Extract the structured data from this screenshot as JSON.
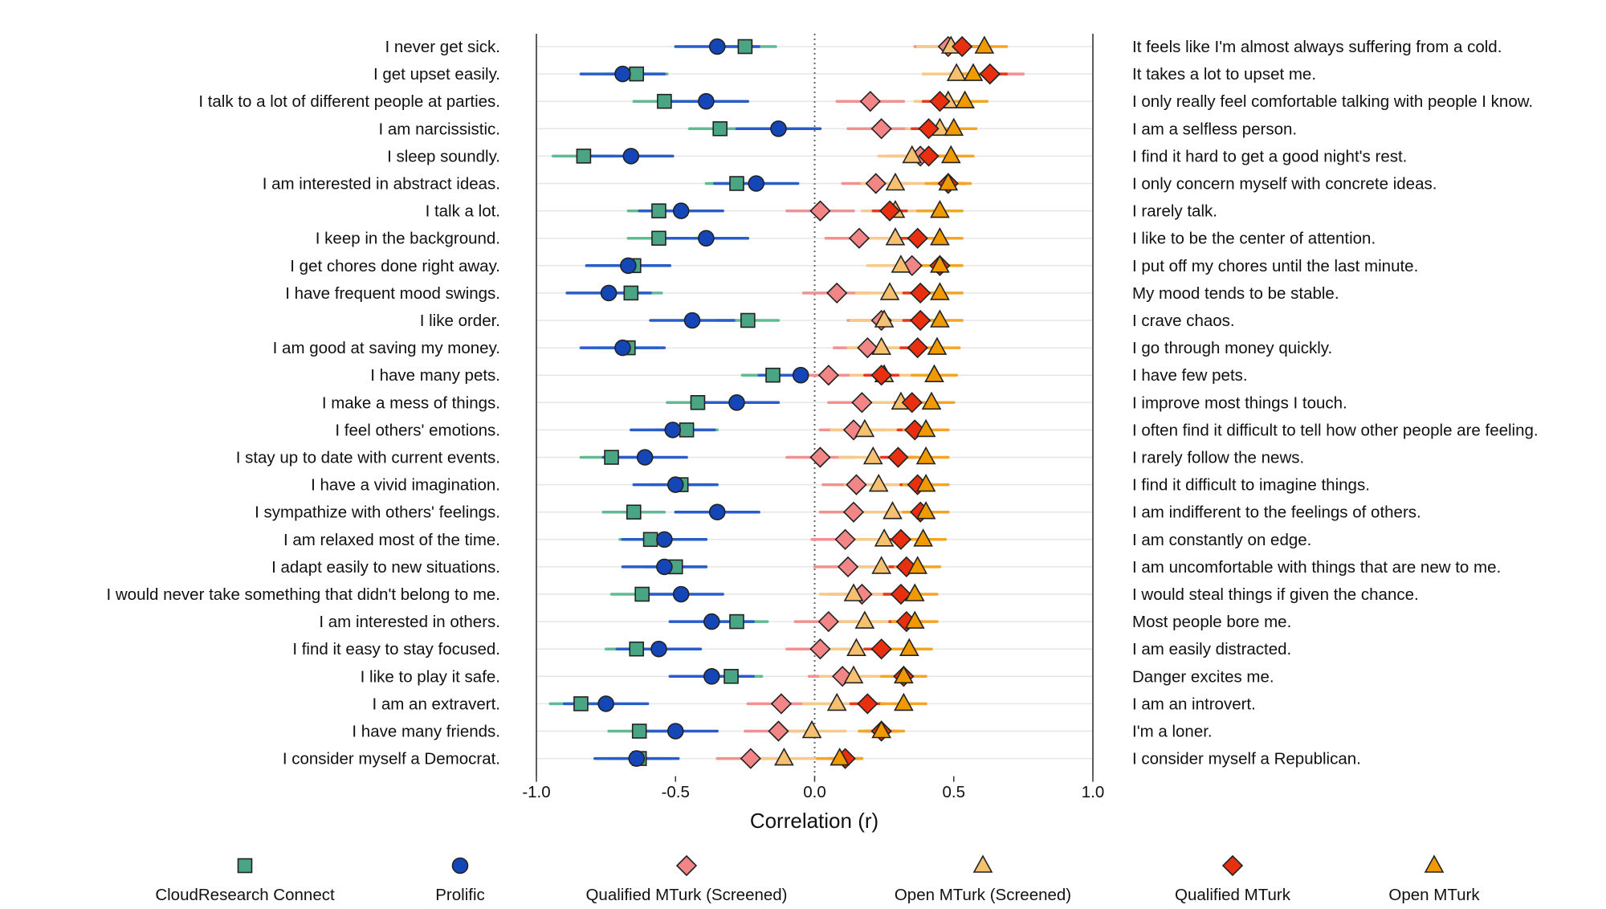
{
  "chart_data": {
    "type": "scatter",
    "subtype": "dot-plot-with-confidence-intervals",
    "xlabel": "Correlation (r)",
    "xlim": [
      -1.0,
      1.0
    ],
    "xticks": [
      "-1.0",
      "-0.5",
      "0.0",
      "0.5",
      "1.0"
    ],
    "xtick_values": [
      -1.0,
      -0.5,
      0.0,
      0.5,
      1.0
    ],
    "reference_line": 0.0,
    "legend_position": "bottom",
    "left_labels": [
      "I never get sick.",
      "I get upset easily.",
      "I talk to a lot of different people at parties.",
      "I am narcissistic.",
      "I sleep soundly.",
      "I am interested in abstract ideas.",
      "I talk a lot.",
      "I keep in the background.",
      "I get chores done right away.",
      "I have frequent mood swings.",
      "I like order.",
      "I am good at saving my money.",
      "I have many pets.",
      "I make a mess of things.",
      "I feel others' emotions.",
      "I stay up to date with current events.",
      "I have a vivid imagination.",
      "I sympathize with others' feelings.",
      "I am relaxed most of the time.",
      "I adapt easily to new situations.",
      "I would never take something that didn't belong to me.",
      "I am interested in others.",
      "I find it easy to stay focused.",
      "I like to play it safe.",
      "I am an extravert.",
      "I have many friends.",
      "I consider myself a Democrat."
    ],
    "right_labels": [
      "It feels like I'm almost always suffering from a cold.",
      "It takes a lot to upset me.",
      "I only really feel comfortable talking with people I know.",
      "I am a selfless person.",
      "I find it hard to get a good night's rest.",
      "I only concern myself with concrete ideas.",
      "I rarely talk.",
      "I like to be the center of attention.",
      "I put off my chores until the last minute.",
      "My mood tends to be stable.",
      "I crave chaos.",
      "I go through money quickly.",
      "I have few pets.",
      "I improve most things I touch.",
      "I often find it difficult to tell how other people are feeling.",
      "I rarely follow the news.",
      "I find it difficult to imagine things.",
      "I am indifferent to the feelings of others.",
      "I am constantly on edge.",
      "I am uncomfortable with things that are new to me.",
      "I would steal things if given the chance.",
      "Most people bore me.",
      "I am easily distracted.",
      "Danger excites me.",
      "I am an introvert.",
      "I'm a loner.",
      "I consider myself a Republican."
    ],
    "series": [
      {
        "name": "CloudResearch Connect",
        "marker": "square",
        "color": "#4aa584",
        "ci_color": "#5fbb92",
        "ci_halfwidth": 0.11,
        "values": [
          -0.25,
          -0.64,
          -0.54,
          -0.34,
          -0.83,
          -0.28,
          -0.56,
          -0.56,
          -0.65,
          -0.66,
          -0.24,
          -0.67,
          -0.15,
          -0.42,
          -0.46,
          -0.73,
          -0.48,
          -0.65,
          -0.59,
          -0.5,
          -0.62,
          -0.28,
          -0.64,
          -0.3,
          -0.84,
          -0.63,
          -0.63
        ]
      },
      {
        "name": "Prolific",
        "marker": "circle",
        "color": "#1446b8",
        "ci_color": "#2a5ccc",
        "ci_halfwidth": 0.15,
        "values": [
          -0.35,
          -0.69,
          -0.39,
          -0.13,
          -0.66,
          -0.21,
          -0.48,
          -0.39,
          -0.67,
          -0.74,
          -0.44,
          -0.69,
          -0.05,
          -0.28,
          -0.51,
          -0.61,
          -0.5,
          -0.35,
          -0.54,
          -0.54,
          -0.48,
          -0.37,
          -0.56,
          -0.37,
          -0.75,
          -0.5,
          -0.64
        ]
      },
      {
        "name": "Qualified MTurk (Screened)",
        "marker": "diamond",
        "color": "#f28585",
        "ci_color": "#f39090",
        "ci_halfwidth": 0.12,
        "values": [
          0.48,
          0.63,
          0.2,
          0.24,
          0.38,
          0.22,
          0.02,
          0.16,
          0.35,
          0.08,
          0.24,
          0.19,
          0.05,
          0.17,
          0.14,
          0.02,
          0.15,
          0.14,
          0.11,
          0.12,
          0.17,
          0.05,
          0.02,
          0.1,
          -0.12,
          -0.13,
          -0.23
        ]
      },
      {
        "name": "Open MTurk (Screened)",
        "marker": "triangle",
        "color": "#f5c070",
        "ci_color": "#f7c98a",
        "ci_halfwidth": 0.12,
        "values": [
          0.49,
          0.51,
          0.48,
          0.45,
          0.35,
          0.29,
          0.29,
          0.29,
          0.31,
          0.27,
          0.25,
          0.24,
          0.25,
          0.31,
          0.18,
          0.21,
          0.23,
          0.28,
          0.25,
          0.24,
          0.14,
          0.18,
          0.15,
          0.14,
          0.08,
          -0.01,
          -0.11
        ]
      },
      {
        "name": "Qualified MTurk",
        "marker": "diamond",
        "color": "#e83010",
        "ci_color": "#e8381e",
        "ci_halfwidth": 0.06,
        "values": [
          0.53,
          0.63,
          0.45,
          0.41,
          0.41,
          0.48,
          0.27,
          0.37,
          0.45,
          0.38,
          0.38,
          0.37,
          0.24,
          0.35,
          0.36,
          0.3,
          0.37,
          0.38,
          0.31,
          0.33,
          0.31,
          0.33,
          0.24,
          0.32,
          0.19,
          0.24,
          0.11
        ]
      },
      {
        "name": "Open MTurk",
        "marker": "triangle",
        "color": "#f09a00",
        "ci_color": "#f5a423",
        "ci_halfwidth": 0.08,
        "values": [
          0.61,
          0.57,
          0.54,
          0.5,
          0.49,
          0.48,
          0.45,
          0.45,
          0.45,
          0.45,
          0.45,
          0.44,
          0.43,
          0.42,
          0.4,
          0.4,
          0.4,
          0.4,
          0.39,
          0.37,
          0.36,
          0.36,
          0.34,
          0.32,
          0.32,
          0.24,
          0.09
        ]
      }
    ]
  }
}
